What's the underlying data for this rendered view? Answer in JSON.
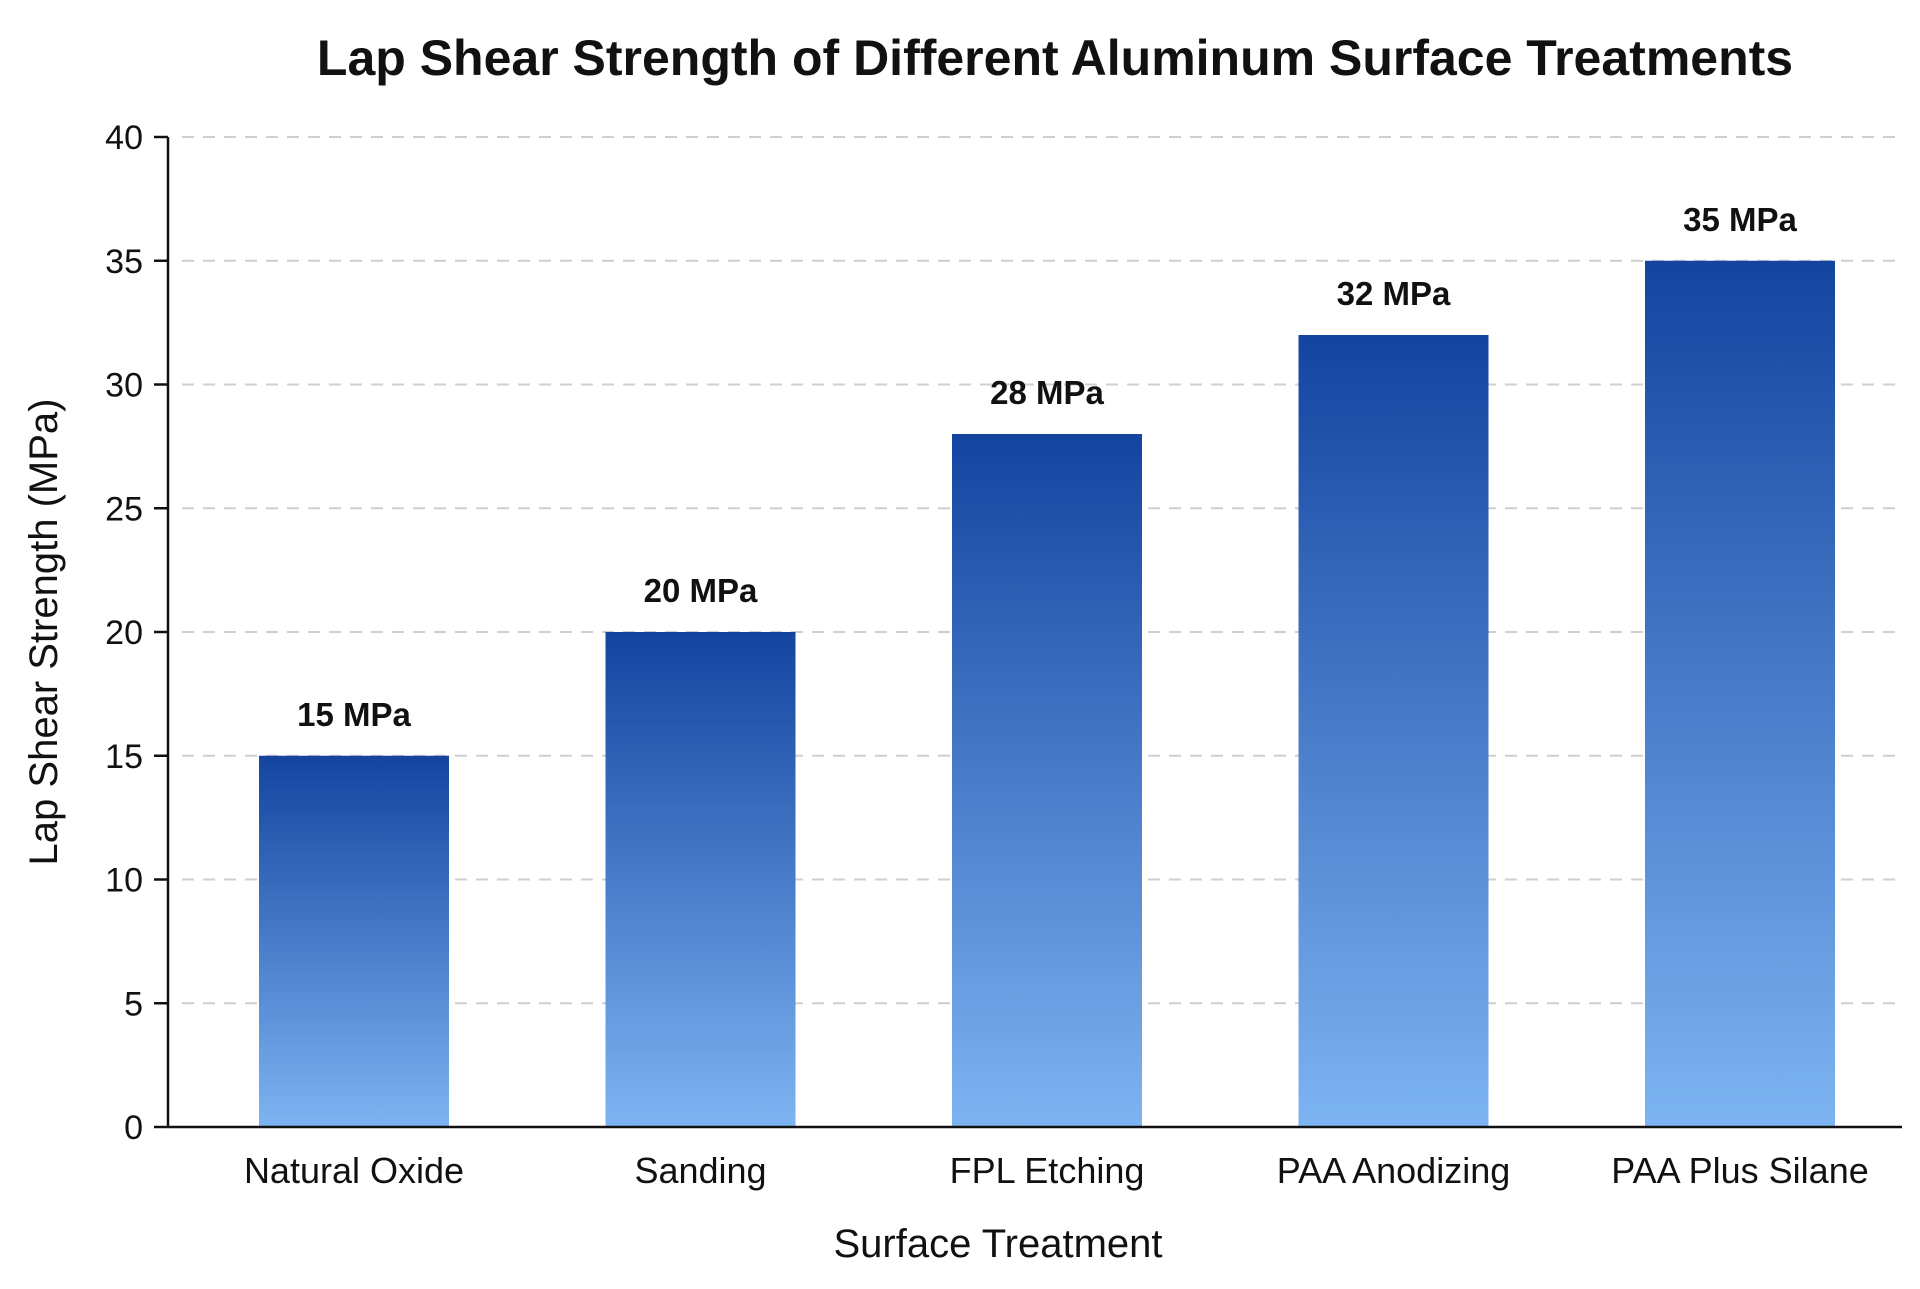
{
  "chart_data": {
    "type": "bar",
    "title": "Lap Shear Strength of Different Aluminum Surface Treatments",
    "xlabel": "Surface Treatment",
    "ylabel": "Lap Shear Strength (MPa)",
    "categories": [
      "Natural Oxide",
      "Sanding",
      "FPL Etching",
      "PAA Anodizing",
      "PAA Plus Silane"
    ],
    "values": [
      15,
      20,
      28,
      32,
      35
    ],
    "value_labels": [
      "15 MPa",
      "20 MPa",
      "28 MPa",
      "32 MPa",
      "35 MPa"
    ],
    "ylim": [
      0,
      40
    ],
    "yticks": [
      0,
      5,
      10,
      15,
      20,
      25,
      30,
      35,
      40
    ],
    "grid": "horizontal dashed",
    "legend": "none",
    "colors": {
      "bar_top": "#1444a0",
      "bar_bottom": "#7db4f2",
      "grid": "#cfcfcf",
      "axis": "#111111"
    }
  }
}
